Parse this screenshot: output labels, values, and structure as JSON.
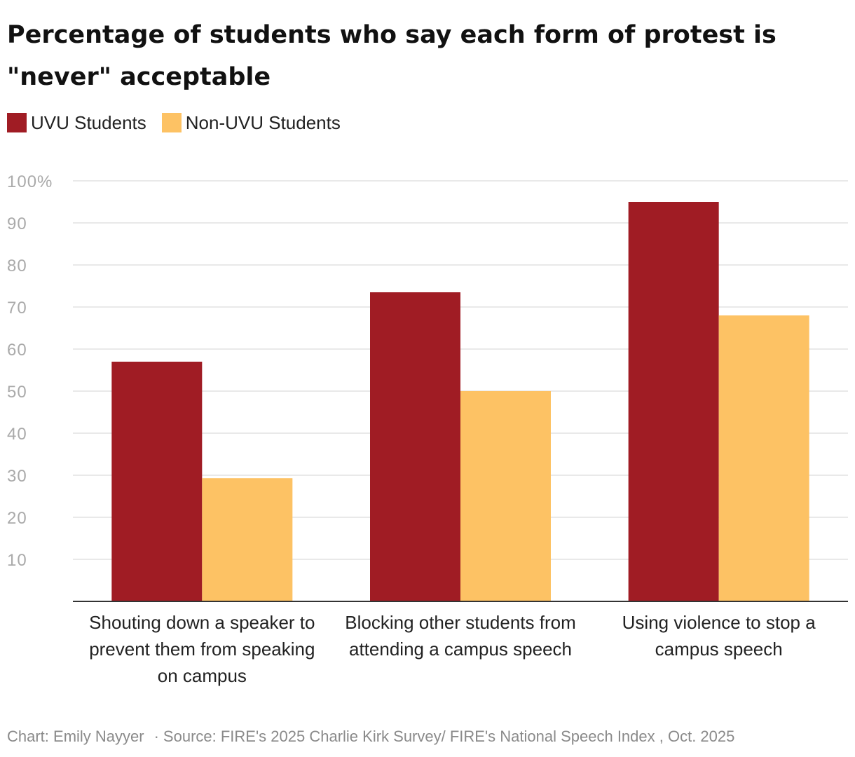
{
  "title": "Percentage of students who say each form of protest is \"never\" acceptable",
  "footer": {
    "credit": "Chart: Emily Nayyer",
    "separator": "·",
    "source": "Source: FIRE's 2025 Charlie Kirk Survey/ FIRE's National Speech Index , Oct. 2025"
  },
  "colors": {
    "uvu": "#a01c24",
    "non_uvu": "#fdc264",
    "grid": "#e2e2e2",
    "axis": "#333333",
    "tick_label": "#aaaaaa"
  },
  "chart_data": {
    "type": "bar",
    "categories": [
      "Shouting down a speaker to prevent them from speaking on campus",
      "Blocking other students from attending a campus speech",
      "Using violence to stop a campus speech"
    ],
    "series": [
      {
        "name": "UVU Students",
        "values": [
          57,
          73.5,
          95
        ]
      },
      {
        "name": "Non-UVU Students",
        "values": [
          29.3,
          50,
          68
        ]
      }
    ],
    "ylim": [
      0,
      100
    ],
    "yticks": [
      "10",
      "20",
      "30",
      "40",
      "50",
      "60",
      "70",
      "80",
      "90",
      "100%"
    ],
    "grid": true,
    "legend_position": "top-left"
  }
}
